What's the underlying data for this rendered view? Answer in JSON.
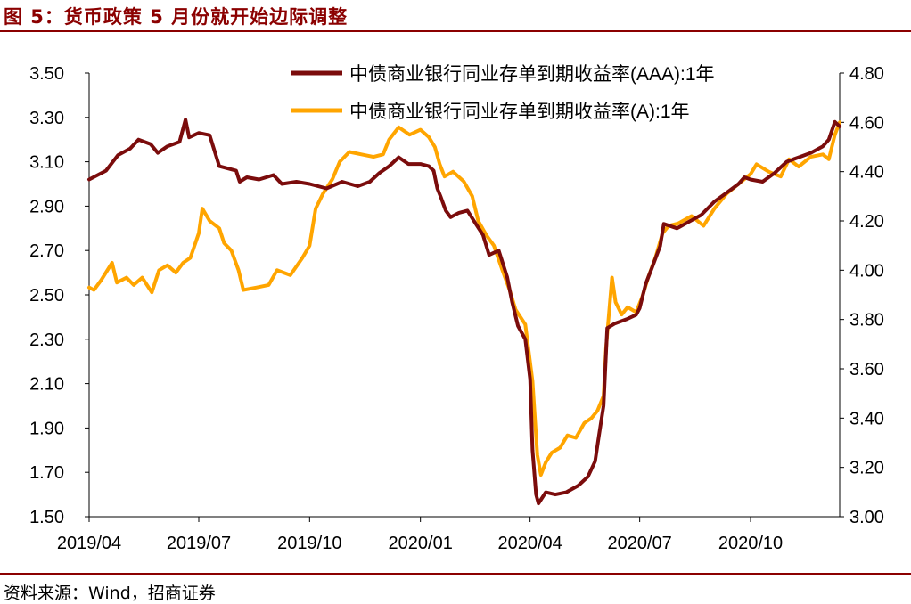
{
  "figure": {
    "title": "图 5：货币政策 5 月份就开始边际调整",
    "source": "资料来源：Wind，招商证券"
  },
  "colors": {
    "title": "#8b0000",
    "aaa": "#7b0c0c",
    "a": "#ffa500",
    "axis": "#000000"
  },
  "chart_data": {
    "type": "line",
    "grid": false,
    "legend_position": "top-right",
    "x_ticks": [
      "2019/04",
      "2019/07",
      "2019/10",
      "2020/01",
      "2020/04",
      "2020/07",
      "2020/10"
    ],
    "x_tick_values": [
      "2019-04-01",
      "2019-07-01",
      "2019-10-01",
      "2020-01-01",
      "2020-04-01",
      "2020-07-01",
      "2020-10-01"
    ],
    "x_range": [
      "2019-04-01",
      "2020-12-14"
    ],
    "left_axis": {
      "ylim": [
        1.5,
        3.5
      ],
      "ticks": [
        "1.50",
        "1.70",
        "1.90",
        "2.10",
        "2.30",
        "2.50",
        "2.70",
        "2.90",
        "3.10",
        "3.30",
        "3.50"
      ]
    },
    "right_axis": {
      "ylim": [
        3.0,
        4.8
      ],
      "ticks": [
        "3.00",
        "3.20",
        "3.40",
        "3.60",
        "3.80",
        "4.00",
        "4.20",
        "4.40",
        "4.60",
        "4.80"
      ]
    },
    "series": [
      {
        "name": "中债商业银行同业存单到期收益率(AAA):1年",
        "axis": "left",
        "points": [
          [
            "2019-04-01",
            3.02
          ],
          [
            "2019-04-15",
            3.06
          ],
          [
            "2019-04-25",
            3.13
          ],
          [
            "2019-05-05",
            3.16
          ],
          [
            "2019-05-12",
            3.2
          ],
          [
            "2019-05-22",
            3.18
          ],
          [
            "2019-05-28",
            3.14
          ],
          [
            "2019-06-05",
            3.17
          ],
          [
            "2019-06-15",
            3.19
          ],
          [
            "2019-06-20",
            3.29
          ],
          [
            "2019-06-23",
            3.21
          ],
          [
            "2019-07-01",
            3.23
          ],
          [
            "2019-07-10",
            3.22
          ],
          [
            "2019-07-18",
            3.08
          ],
          [
            "2019-07-25",
            3.07
          ],
          [
            "2019-08-01",
            3.06
          ],
          [
            "2019-08-04",
            3.01
          ],
          [
            "2019-08-10",
            3.03
          ],
          [
            "2019-08-20",
            3.02
          ],
          [
            "2019-09-01",
            3.04
          ],
          [
            "2019-09-08",
            3.0
          ],
          [
            "2019-09-20",
            3.01
          ],
          [
            "2019-10-01",
            3.0
          ],
          [
            "2019-10-15",
            2.98
          ],
          [
            "2019-10-28",
            3.01
          ],
          [
            "2019-11-10",
            2.99
          ],
          [
            "2019-11-20",
            3.01
          ],
          [
            "2019-11-28",
            3.05
          ],
          [
            "2019-12-06",
            3.08
          ],
          [
            "2019-12-14",
            3.12
          ],
          [
            "2019-12-22",
            3.09
          ],
          [
            "2020-01-01",
            3.09
          ],
          [
            "2020-01-08",
            3.08
          ],
          [
            "2020-01-12",
            3.06
          ],
          [
            "2020-01-15",
            2.98
          ],
          [
            "2020-01-18",
            2.94
          ],
          [
            "2020-01-22",
            2.88
          ],
          [
            "2020-01-26",
            2.85
          ],
          [
            "2020-02-02",
            2.87
          ],
          [
            "2020-02-09",
            2.88
          ],
          [
            "2020-02-16",
            2.82
          ],
          [
            "2020-02-22",
            2.77
          ],
          [
            "2020-02-27",
            2.68
          ],
          [
            "2020-03-06",
            2.7
          ],
          [
            "2020-03-13",
            2.58
          ],
          [
            "2020-03-17",
            2.47
          ],
          [
            "2020-03-22",
            2.36
          ],
          [
            "2020-03-28",
            2.3
          ],
          [
            "2020-04-01",
            2.12
          ],
          [
            "2020-04-03",
            1.8
          ],
          [
            "2020-04-06",
            1.6
          ],
          [
            "2020-04-08",
            1.56
          ],
          [
            "2020-04-14",
            1.61
          ],
          [
            "2020-04-22",
            1.6
          ],
          [
            "2020-05-01",
            1.61
          ],
          [
            "2020-05-11",
            1.64
          ],
          [
            "2020-05-19",
            1.68
          ],
          [
            "2020-05-25",
            1.75
          ],
          [
            "2020-05-28",
            1.86
          ],
          [
            "2020-06-01",
            2.0
          ],
          [
            "2020-06-04",
            2.35
          ],
          [
            "2020-06-10",
            2.37
          ],
          [
            "2020-06-20",
            2.39
          ],
          [
            "2020-06-28",
            2.41
          ],
          [
            "2020-07-01",
            2.44
          ],
          [
            "2020-07-06",
            2.55
          ],
          [
            "2020-07-11",
            2.62
          ],
          [
            "2020-07-18",
            2.72
          ],
          [
            "2020-07-21",
            2.82
          ],
          [
            "2020-08-01",
            2.8
          ],
          [
            "2020-08-11",
            2.83
          ],
          [
            "2020-08-21",
            2.86
          ],
          [
            "2020-09-01",
            2.92
          ],
          [
            "2020-09-11",
            2.96
          ],
          [
            "2020-09-21",
            3.0
          ],
          [
            "2020-09-26",
            3.03
          ],
          [
            "2020-10-01",
            3.02
          ],
          [
            "2020-10-11",
            3.01
          ],
          [
            "2020-10-21",
            3.05
          ],
          [
            "2020-10-31",
            3.1
          ],
          [
            "2020-11-10",
            3.12
          ],
          [
            "2020-11-20",
            3.14
          ],
          [
            "2020-11-30",
            3.17
          ],
          [
            "2020-12-05",
            3.2
          ],
          [
            "2020-12-10",
            3.28
          ],
          [
            "2020-12-14",
            3.26
          ]
        ]
      },
      {
        "name": "中债商业银行同业存单到期收益率(A):1年",
        "axis": "right",
        "points": [
          [
            "2019-04-01",
            3.93
          ],
          [
            "2019-04-05",
            3.92
          ],
          [
            "2019-04-11",
            3.96
          ],
          [
            "2019-04-20",
            4.03
          ],
          [
            "2019-04-24",
            3.95
          ],
          [
            "2019-05-02",
            3.97
          ],
          [
            "2019-05-08",
            3.94
          ],
          [
            "2019-05-15",
            3.97
          ],
          [
            "2019-05-23",
            3.91
          ],
          [
            "2019-05-29",
            4.0
          ],
          [
            "2019-06-05",
            4.02
          ],
          [
            "2019-06-12",
            3.99
          ],
          [
            "2019-06-18",
            4.03
          ],
          [
            "2019-06-24",
            4.05
          ],
          [
            "2019-07-01",
            4.15
          ],
          [
            "2019-07-04",
            4.25
          ],
          [
            "2019-07-10",
            4.2
          ],
          [
            "2019-07-18",
            4.17
          ],
          [
            "2019-07-22",
            4.11
          ],
          [
            "2019-07-28",
            4.08
          ],
          [
            "2019-08-03",
            4.0
          ],
          [
            "2019-08-07",
            3.92
          ],
          [
            "2019-08-18",
            3.93
          ],
          [
            "2019-08-28",
            3.94
          ],
          [
            "2019-09-04",
            4.0
          ],
          [
            "2019-09-15",
            3.98
          ],
          [
            "2019-09-25",
            4.05
          ],
          [
            "2019-10-01",
            4.1
          ],
          [
            "2019-10-06",
            4.25
          ],
          [
            "2019-10-12",
            4.31
          ],
          [
            "2019-10-20",
            4.37
          ],
          [
            "2019-10-26",
            4.44
          ],
          [
            "2019-11-03",
            4.48
          ],
          [
            "2019-11-13",
            4.47
          ],
          [
            "2019-11-23",
            4.46
          ],
          [
            "2019-12-01",
            4.47
          ],
          [
            "2019-12-06",
            4.53
          ],
          [
            "2019-12-14",
            4.58
          ],
          [
            "2019-12-23",
            4.55
          ],
          [
            "2020-01-01",
            4.57
          ],
          [
            "2020-01-08",
            4.54
          ],
          [
            "2020-01-13",
            4.5
          ],
          [
            "2020-01-17",
            4.43
          ],
          [
            "2020-01-21",
            4.38
          ],
          [
            "2020-01-28",
            4.4
          ],
          [
            "2020-02-06",
            4.36
          ],
          [
            "2020-02-13",
            4.3
          ],
          [
            "2020-02-18",
            4.2
          ],
          [
            "2020-02-25",
            4.14
          ],
          [
            "2020-03-02",
            4.1
          ],
          [
            "2020-03-09",
            4.0
          ],
          [
            "2020-03-15",
            3.92
          ],
          [
            "2020-03-20",
            3.84
          ],
          [
            "2020-03-28",
            3.78
          ],
          [
            "2020-04-03",
            3.55
          ],
          [
            "2020-04-07",
            3.25
          ],
          [
            "2020-04-10",
            3.17
          ],
          [
            "2020-04-14",
            3.22
          ],
          [
            "2020-04-19",
            3.26
          ],
          [
            "2020-04-26",
            3.28
          ],
          [
            "2020-05-02",
            3.33
          ],
          [
            "2020-05-09",
            3.32
          ],
          [
            "2020-05-16",
            3.38
          ],
          [
            "2020-05-22",
            3.4
          ],
          [
            "2020-05-27",
            3.43
          ],
          [
            "2020-06-01",
            3.49
          ],
          [
            "2020-06-03",
            3.68
          ],
          [
            "2020-06-08",
            3.97
          ],
          [
            "2020-06-11",
            3.87
          ],
          [
            "2020-06-16",
            3.82
          ],
          [
            "2020-06-21",
            3.85
          ],
          [
            "2020-06-28",
            3.83
          ],
          [
            "2020-07-03",
            3.89
          ],
          [
            "2020-07-08",
            3.97
          ],
          [
            "2020-07-14",
            4.05
          ],
          [
            "2020-07-20",
            4.15
          ],
          [
            "2020-07-25",
            4.18
          ],
          [
            "2020-08-02",
            4.19
          ],
          [
            "2020-08-13",
            4.22
          ],
          [
            "2020-08-23",
            4.18
          ],
          [
            "2020-09-01",
            4.25
          ],
          [
            "2020-09-11",
            4.31
          ],
          [
            "2020-09-21",
            4.35
          ],
          [
            "2020-10-01",
            4.39
          ],
          [
            "2020-10-06",
            4.43
          ],
          [
            "2020-10-16",
            4.4
          ],
          [
            "2020-10-26",
            4.38
          ],
          [
            "2020-11-02",
            4.45
          ],
          [
            "2020-11-10",
            4.42
          ],
          [
            "2020-11-20",
            4.46
          ],
          [
            "2020-11-30",
            4.47
          ],
          [
            "2020-12-05",
            4.45
          ],
          [
            "2020-12-10",
            4.55
          ],
          [
            "2020-12-14",
            4.6
          ]
        ]
      }
    ]
  }
}
